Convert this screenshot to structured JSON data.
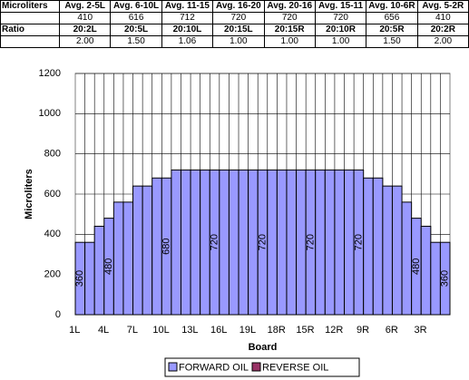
{
  "table": {
    "rows": [
      [
        "Microliters",
        "Avg. 2-5L",
        "Avg. 6-10L",
        "Avg. 11-15",
        "Avg. 16-20",
        "Avg. 20-16",
        "Avg. 15-11",
        "Avg. 10-6R",
        "Avg. 5-2R"
      ],
      [
        null,
        410,
        616,
        712,
        720,
        720,
        720,
        656,
        410
      ],
      [
        "Ratio",
        "20:2L",
        "20:5L",
        "20:10L",
        "20:15L",
        "20:15R",
        "20:10R",
        "20:5R",
        "20:2R"
      ],
      [
        null,
        "2.00",
        "1.50",
        "1.06",
        "1.00",
        "1.00",
        "1.00",
        "1.50",
        "2.00"
      ]
    ]
  },
  "chart_data": {
    "type": "bar",
    "x_label": "Board",
    "y_label": "Microliters",
    "categories": [
      "1L",
      null,
      null,
      "4L",
      null,
      null,
      "7L",
      null,
      null,
      "10L",
      null,
      null,
      "13L",
      null,
      null,
      "16L",
      null,
      null,
      "19L",
      null,
      null,
      "18R",
      null,
      null,
      "15R",
      null,
      null,
      "12R",
      null,
      null,
      "9R",
      null,
      null,
      "6R",
      null,
      null,
      "3R",
      null,
      null
    ],
    "series": [
      {
        "name": "FORWARD OIL",
        "color": "#9999ff",
        "values": [
          360,
          360,
          440,
          480,
          560,
          560,
          640,
          640,
          680,
          680,
          720,
          720,
          720,
          720,
          720,
          720,
          720,
          720,
          720,
          720,
          720,
          720,
          720,
          720,
          720,
          720,
          720,
          720,
          720,
          720,
          680,
          680,
          640,
          640,
          560,
          480,
          440,
          360,
          360
        ],
        "value_labels": [
          "360",
          null,
          null,
          "480",
          null,
          null,
          null,
          null,
          null,
          "680",
          null,
          null,
          null,
          null,
          "720",
          null,
          null,
          null,
          null,
          "720",
          null,
          null,
          null,
          null,
          "720",
          null,
          null,
          null,
          null,
          "720",
          null,
          null,
          null,
          null,
          null,
          "480",
          null,
          null,
          "360"
        ]
      },
      {
        "name": "REVERSE OIL",
        "color": "#993366",
        "values": [
          null,
          null,
          null,
          null,
          null,
          null,
          null,
          null,
          null,
          null,
          null,
          null,
          null,
          null,
          null,
          null,
          null,
          null,
          null,
          null,
          null,
          null,
          null,
          null,
          null,
          null,
          null,
          null,
          null,
          null,
          null,
          null,
          null,
          null,
          null,
          null,
          null,
          null,
          null
        ]
      }
    ],
    "ylim": [
      0,
      1200
    ],
    "yticks": [
      0,
      200,
      400,
      600,
      800,
      1000,
      1200
    ],
    "grid": true
  }
}
